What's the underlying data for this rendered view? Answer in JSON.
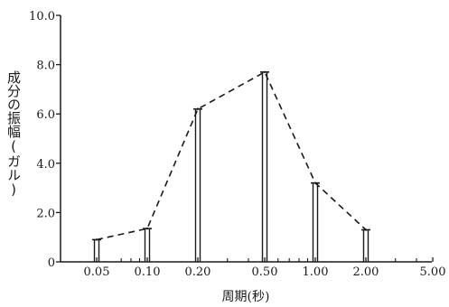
{
  "chart_data": {
    "type": "line",
    "title": "",
    "xlabel": "周期(秒)",
    "ylabel": "成分の振幅(ガル)",
    "xscale": "log",
    "xlim": [
      0.035,
      5.0
    ],
    "ylim": [
      0,
      10
    ],
    "yticks": [
      "0",
      "2.0",
      "4.0",
      "6.0",
      "8.0",
      "10.0"
    ],
    "yticks_values": [
      0,
      2,
      4,
      6,
      8,
      10
    ],
    "xtick_labels": [
      "0.05",
      "0.10",
      "0.20",
      "0.50",
      "1.00",
      "2.00",
      "5.00"
    ],
    "xtick_values": [
      0.05,
      0.1,
      0.2,
      0.5,
      1.0,
      2.0,
      5.0
    ],
    "minor_x_ticks": [
      0.07,
      0.08,
      0.09,
      0.3,
      0.4,
      0.6,
      0.7,
      0.8,
      0.9,
      3,
      4
    ],
    "series": [
      {
        "style": "dashed",
        "x": [
          0.05,
          0.1,
          0.2,
          0.5,
          1.0,
          2.0
        ],
        "y": [
          0.9,
          1.35,
          6.2,
          7.7,
          3.2,
          1.3
        ]
      }
    ],
    "bars": "double vertical lines from 0 to each data value",
    "grid": false,
    "legend": "none"
  }
}
